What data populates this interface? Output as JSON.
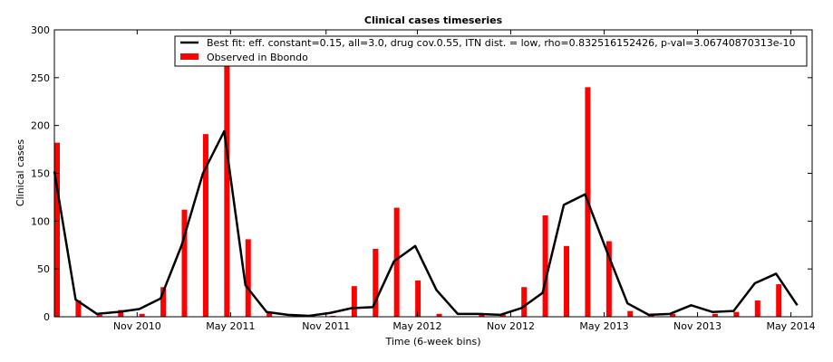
{
  "chart_data": {
    "type": "bar+line",
    "title": "Clinical cases timeseries",
    "xlabel": "Time (6-week bins)",
    "ylabel": "Clinical cases",
    "ylim": [
      0,
      300
    ],
    "yticks": [
      0,
      50,
      100,
      150,
      200,
      250,
      300
    ],
    "xticks": [
      {
        "label": "Nov 2010",
        "bin": 3.9
      },
      {
        "label": "May 2011",
        "bin": 8.3
      },
      {
        "label": "Nov 2011",
        "bin": 12.8
      },
      {
        "label": "May 2012",
        "bin": 17.1
      },
      {
        "label": "Nov 2012",
        "bin": 21.5
      },
      {
        "label": "May 2013",
        "bin": 25.9
      },
      {
        "label": "Nov 2013",
        "bin": 30.3
      },
      {
        "label": "May 2014",
        "bin": 34.7
      }
    ],
    "grid": false,
    "legend_position": "top-right",
    "x": [
      0,
      1,
      2,
      3,
      4,
      5,
      6,
      7,
      8,
      9,
      10,
      11,
      12,
      13,
      14,
      15,
      16,
      17,
      18,
      19,
      20,
      21,
      22,
      23,
      24,
      25,
      26,
      27,
      28,
      29,
      30,
      31,
      32,
      33,
      34,
      35
    ],
    "series": [
      {
        "name": "Best fit: eff. constant=0.15, all=3.0, drug cov.0.55, ITN dist. = low, rho=0.832516152426, p-val=3.06740870313e-10",
        "kind": "line",
        "color": "#000000",
        "values": [
          152,
          18,
          3,
          5,
          8,
          19,
          75,
          150,
          194,
          33,
          5,
          2,
          1,
          4,
          9,
          10,
          58,
          74,
          28,
          3,
          3,
          2,
          9,
          25,
          117,
          128,
          70,
          14,
          2,
          3,
          12,
          5,
          6,
          35,
          45,
          12
        ]
      },
      {
        "name": "Observed in Bbondo",
        "kind": "bar",
        "color": "#ff0000",
        "values": [
          182,
          17,
          2,
          7,
          3,
          31,
          112,
          191,
          262,
          81,
          5,
          0,
          0,
          1,
          32,
          71,
          114,
          38,
          3,
          0,
          2,
          3,
          31,
          106,
          74,
          240,
          79,
          6,
          3,
          3,
          0,
          3,
          5,
          17,
          34,
          0
        ]
      }
    ]
  }
}
